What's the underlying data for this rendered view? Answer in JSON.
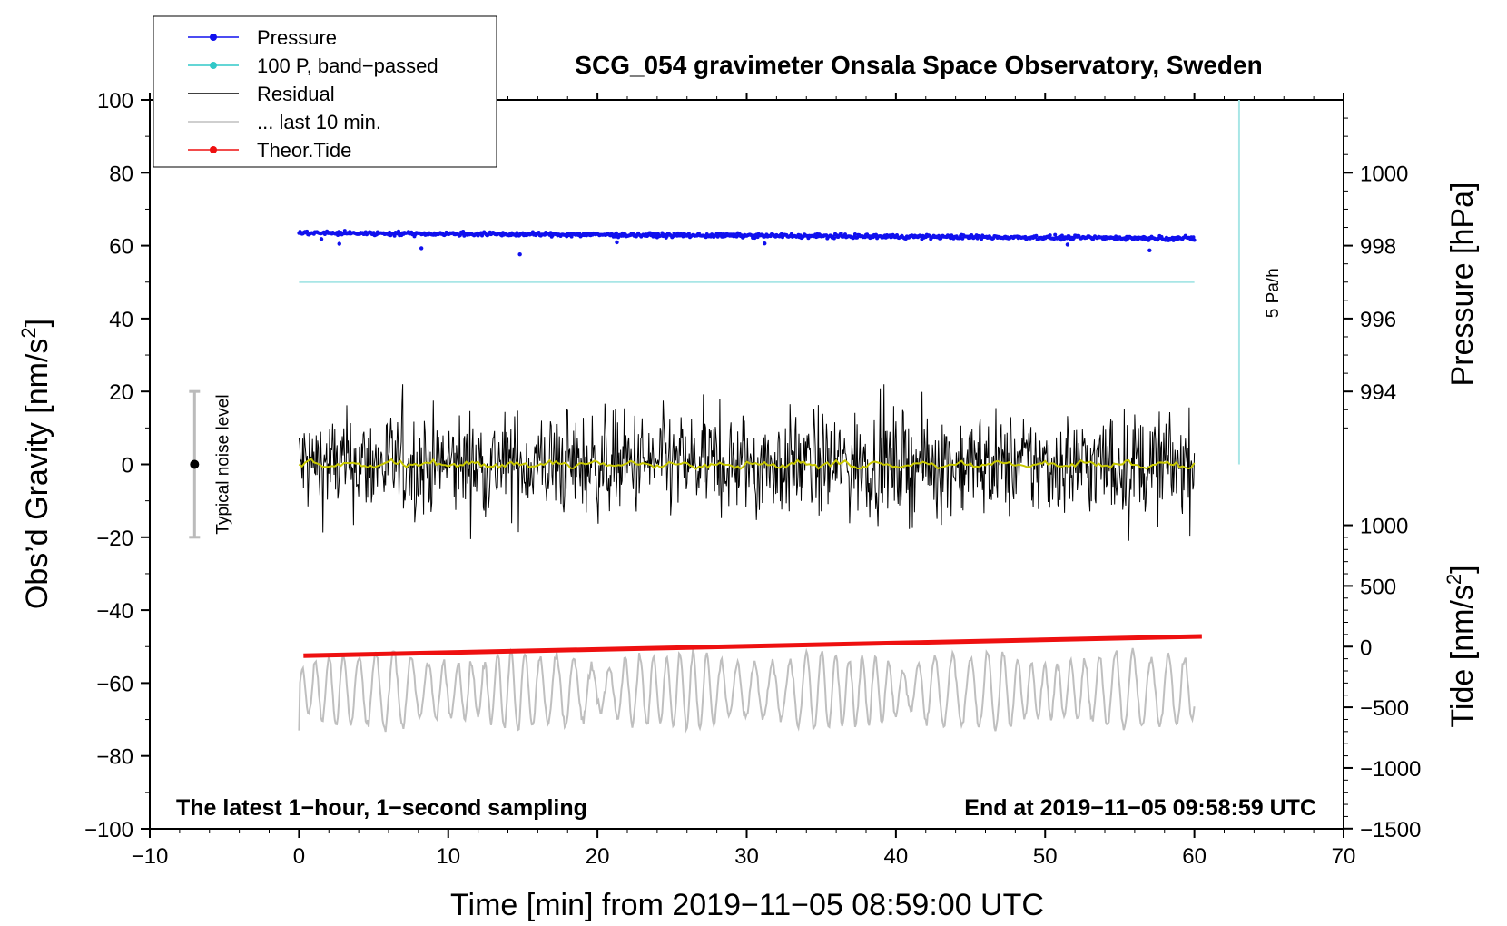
{
  "chart_data": {
    "type": "line",
    "title": "SCG_054 gravimeter Onsala Space Observatory, Sweden",
    "xlabel": "Time [min] from 2019−11−05 08:59:00 UTC",
    "ylabel_left": "Obs’d Gravity [nm/s2]",
    "ylabel_right_top": "Pressure [hPa]",
    "ylabel_right_bottom": "Tide [nm/s2]",
    "xlim": [
      -10,
      70
    ],
    "ylim": [
      -100,
      100
    ],
    "x_ticks": [
      -10,
      0,
      10,
      20,
      30,
      40,
      50,
      60,
      70
    ],
    "x_tick_labels": [
      "−10",
      "0",
      "10",
      "20",
      "30",
      "40",
      "50",
      "60",
      "70"
    ],
    "y_ticks": [
      100,
      80,
      60,
      40,
      20,
      0,
      -20,
      -40,
      -60,
      -80,
      -100
    ],
    "y_tick_labels": [
      "100",
      "80",
      "60",
      "40",
      "20",
      "0",
      "−20",
      "−40",
      "−60",
      "−80",
      "−100"
    ],
    "pressure_axis": {
      "ticks": [
        1000,
        998,
        996,
        994
      ],
      "tick_labels": [
        "1000",
        "998",
        "996",
        "994"
      ],
      "left_value_at_1000": 80,
      "left_units_per_hpa": 10
    },
    "tide_axis": {
      "ticks": [
        1000,
        500,
        0,
        -500,
        -1000,
        -1500
      ],
      "tick_labels": [
        "1000",
        "500",
        "0",
        "−500",
        "−1000",
        "−1500"
      ],
      "left_value_at_0": -50,
      "left_units_per_1000": 33.3
    },
    "legend": {
      "position": "top-left",
      "entries": [
        {
          "label": "Pressure",
          "color": "#1010ee",
          "marker": true
        },
        {
          "label": "100 P, band−passed",
          "color": "#30c8c8",
          "marker": true
        },
        {
          "label": "Residual",
          "color": "#000000",
          "marker": false
        },
        {
          "label": "... last 10 min.",
          "color": "#bfbfbf",
          "marker": false
        },
        {
          "label": "Theor.Tide",
          "color": "#ee1010",
          "marker": true
        }
      ]
    },
    "series": [
      {
        "name": "Pressure",
        "color": "#1010ee",
        "x_range": [
          0,
          60
        ],
        "y_start": 63.5,
        "y_end": 62.0,
        "spread": 0.8,
        "outliers": [
          [
            1.5,
            61.8
          ],
          [
            2.7,
            60.5
          ],
          [
            8.2,
            59.3
          ],
          [
            14.8,
            57.6
          ],
          [
            21.3,
            60.9
          ],
          [
            31.2,
            60.6
          ],
          [
            51.5,
            60.3
          ],
          [
            57,
            58.7
          ]
        ]
      },
      {
        "name": "100 P, band−passed",
        "color": "#a8e6e6",
        "x_range": [
          0,
          60
        ],
        "y": 50
      },
      {
        "name": "Residual",
        "color": "#000000",
        "x_range": [
          0,
          60
        ],
        "y_mean": 0,
        "typical_amplitude": 8,
        "y_max": 22,
        "y_min": -21
      },
      {
        "name": "Residual smoothed",
        "color": "#c8c800",
        "x_range": [
          0,
          60
        ],
        "y_mean": 0
      },
      {
        "name": "Theor.Tide",
        "color": "#ee1010",
        "x_range": [
          0.3,
          60.5
        ],
        "y_start": -52.5,
        "y_end": -47.2
      },
      {
        "name": "... last 10 min.",
        "color": "#bfbfbf",
        "x_range": [
          0,
          60
        ],
        "y_mean": -62,
        "y_min": -76,
        "y_max": -42
      }
    ],
    "noise_level": {
      "label": "Typical noise level",
      "x": -7,
      "y_center": 0,
      "y_low": -20,
      "y_high": 20
    },
    "rate_marker": {
      "label": "5 Pa/h",
      "x": 63,
      "y_top": 100,
      "y_bottom": 0
    },
    "annotations": {
      "bottom_left": "The latest 1−hour, 1−second sampling",
      "bottom_right": "End at 2019−11−05 09:58:59 UTC"
    }
  }
}
